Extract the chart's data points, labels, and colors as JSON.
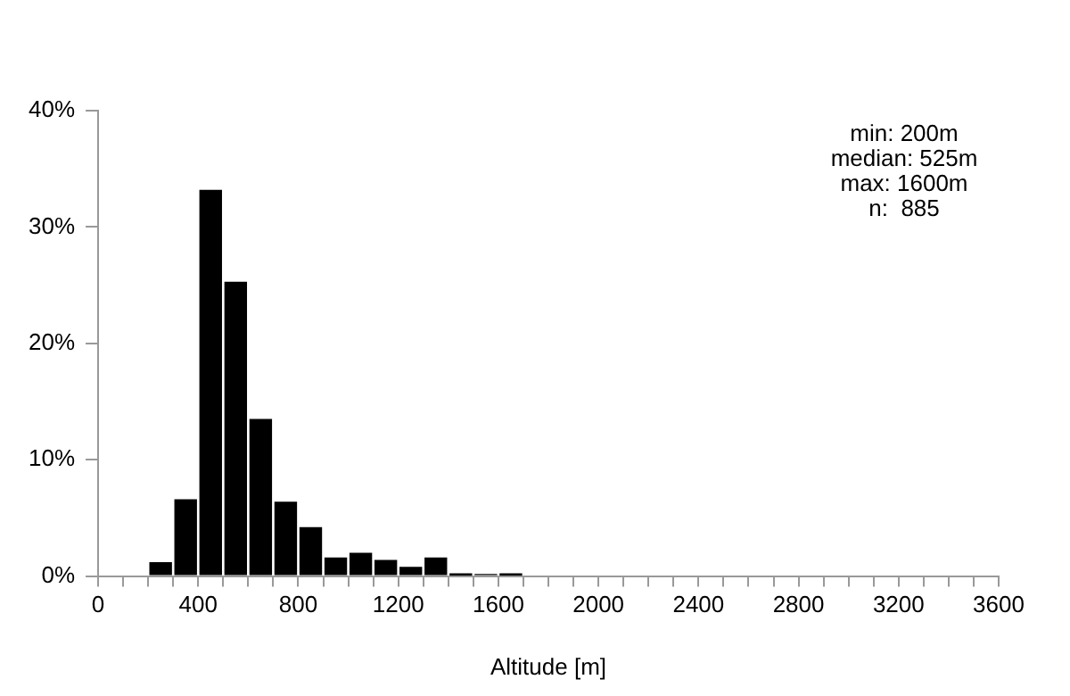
{
  "chart_data": {
    "type": "histogram",
    "xlabel": "Altitude [m]",
    "bins": [
      0,
      100,
      200,
      300,
      400,
      500,
      600,
      700,
      800,
      900,
      1000,
      1100,
      1200,
      1300,
      1400,
      1500,
      1600,
      1700,
      1800,
      1900,
      2000,
      2100,
      2200,
      2300,
      2400,
      2500,
      2600,
      2700,
      2800,
      2900,
      3000,
      3100,
      3200,
      3300,
      3400,
      3500,
      3600
    ],
    "values": [
      0,
      0,
      1.3,
      6.7,
      33.3,
      25.4,
      13.6,
      6.5,
      4.3,
      1.7,
      2.1,
      1.5,
      0.9,
      1.7,
      0.3,
      0.2,
      0.3,
      0,
      0,
      0,
      0,
      0,
      0,
      0,
      0,
      0,
      0,
      0,
      0,
      0,
      0,
      0,
      0,
      0,
      0,
      0
    ],
    "color": "#000000",
    "xlim": [
      0,
      3600
    ],
    "xticks": [
      0,
      {
        "value": 100,
        "label": null
      },
      {
        "value": 200,
        "label": null
      },
      {
        "value": 300,
        "label": null
      },
      400,
      {
        "value": 500,
        "label": null
      },
      {
        "value": 600,
        "label": null
      },
      {
        "value": 700,
        "label": null
      },
      800,
      {
        "value": 900,
        "label": null
      },
      {
        "value": 1000,
        "label": null
      },
      {
        "value": 1100,
        "label": null
      },
      1200,
      {
        "value": 1300,
        "label": null
      },
      {
        "value": 1400,
        "label": null
      },
      {
        "value": 1500,
        "label": null
      },
      1600,
      {
        "value": 1700,
        "label": null
      },
      {
        "value": 1800,
        "label": null
      },
      {
        "value": 1900,
        "label": null
      },
      2000,
      {
        "value": 2100,
        "label": null
      },
      {
        "value": 2200,
        "label": null
      },
      {
        "value": 2300,
        "label": null
      },
      2400,
      {
        "value": 2500,
        "label": null
      },
      {
        "value": 2600,
        "label": null
      },
      {
        "value": 2700,
        "label": null
      },
      2800,
      {
        "value": 2900,
        "label": null
      },
      {
        "value": 3000,
        "label": null
      },
      {
        "value": 3100,
        "label": null
      },
      3200,
      {
        "value": 3300,
        "label": null
      },
      {
        "value": 3400,
        "label": null
      },
      {
        "value": 3500,
        "label": null
      },
      3600
    ],
    "ylim": [
      0,
      40
    ],
    "yticks": [
      {
        "value": 0,
        "label": "0%"
      },
      {
        "value": 10,
        "label": "10%"
      },
      {
        "value": 20,
        "label": "20%"
      },
      {
        "value": 30,
        "label": "30%"
      },
      {
        "value": 40,
        "label": "40%"
      }
    ],
    "grid": false,
    "annotations": [
      "min: 200m",
      "median: 525m",
      "max: 1600m",
      "n:  885"
    ]
  }
}
